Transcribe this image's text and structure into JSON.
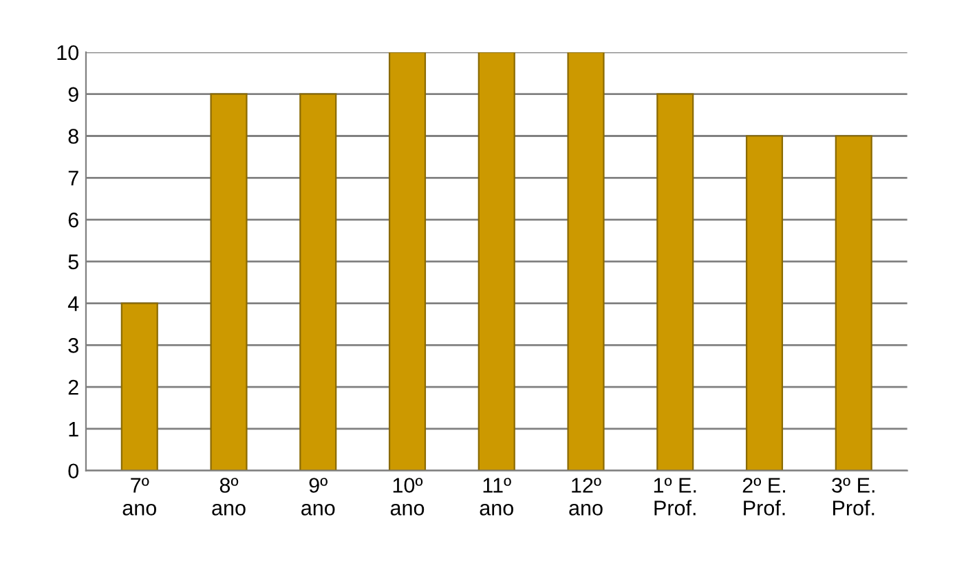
{
  "chart_data": {
    "type": "bar",
    "categories": [
      "7º\nano",
      "8º\nano",
      "9º\nano",
      "10º\nano",
      "11º\nano",
      "12º\nano",
      "1º E.\nProf.",
      "2º E.\nProf.",
      "3º E.\nProf."
    ],
    "values": [
      4,
      9,
      9,
      10,
      10,
      10,
      9,
      8,
      8
    ],
    "color": "#cc9900",
    "ylim": [
      0,
      10
    ],
    "yticks": [
      0,
      1,
      2,
      3,
      4,
      5,
      6,
      7,
      8,
      9,
      10
    ],
    "grid": "y"
  }
}
